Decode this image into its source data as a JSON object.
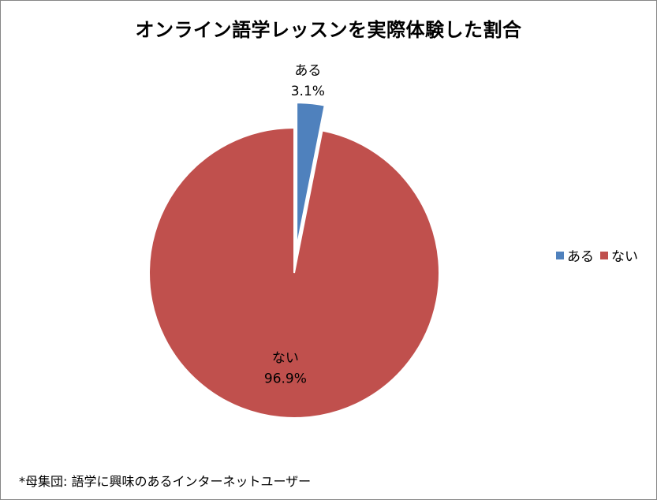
{
  "chart_data": {
    "type": "pie",
    "title": "オンライン語学レッスンを実際体験した割合",
    "slices": [
      {
        "label": "ある",
        "value": 3.1,
        "value_label": "3.1%",
        "color": "#4F81BD",
        "exploded": true
      },
      {
        "label": "ない",
        "value": 96.9,
        "value_label": "96.9%",
        "color": "#C0504D",
        "exploded": false
      }
    ],
    "legend": {
      "position": "right",
      "entries": [
        "ある",
        "ない"
      ]
    },
    "footnote": "*母集団: 語学に興味のあるインターネットユーザー"
  }
}
